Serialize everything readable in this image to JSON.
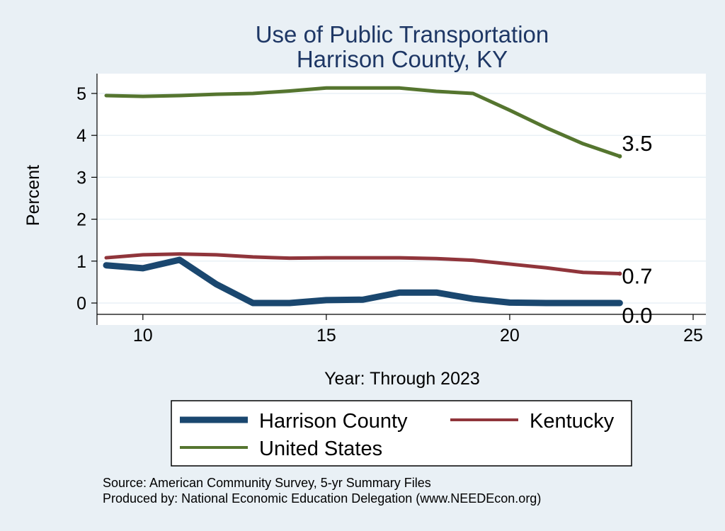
{
  "chart_data": {
    "type": "line",
    "title_lines": [
      "Use of Public Transportation",
      "Harrison County, KY"
    ],
    "xlabel": "Year: Through 2023",
    "ylabel": "Percent",
    "x_ticks": [
      10,
      15,
      20,
      25
    ],
    "y_ticks": [
      0,
      1,
      2,
      3,
      4,
      5
    ],
    "xlim": [
      9,
      25
    ],
    "ylim": [
      0,
      5
    ],
    "grid": true,
    "x": [
      9,
      10,
      11,
      12,
      13,
      14,
      15,
      16,
      17,
      18,
      19,
      20,
      21,
      22,
      23
    ],
    "series": [
      {
        "name": "Harrison County",
        "color": "#1a476f",
        "values": [
          0.9,
          0.83,
          1.03,
          0.45,
          0.0,
          0.0,
          0.07,
          0.08,
          0.25,
          0.25,
          0.1,
          0.01,
          0.0,
          0.0,
          0.0
        ],
        "end_label": "0.0"
      },
      {
        "name": "Kentucky",
        "color": "#90353b",
        "values": [
          1.08,
          1.15,
          1.17,
          1.15,
          1.1,
          1.07,
          1.08,
          1.08,
          1.08,
          1.06,
          1.02,
          0.93,
          0.84,
          0.73,
          0.7
        ],
        "end_label": "0.7"
      },
      {
        "name": "United States",
        "color": "#55752f",
        "values": [
          4.95,
          4.93,
          4.95,
          4.98,
          5.0,
          5.06,
          5.13,
          5.13,
          5.13,
          5.05,
          5.0,
          4.6,
          4.18,
          3.8,
          3.5
        ],
        "end_label": "3.5"
      }
    ],
    "legend_placement": "bottom"
  },
  "footer": {
    "source": "Source: American Community Survey, 5-yr Summary Files",
    "produced_by": "Produced by: National Economic Education Delegation (www.NEEDEcon.org)"
  }
}
